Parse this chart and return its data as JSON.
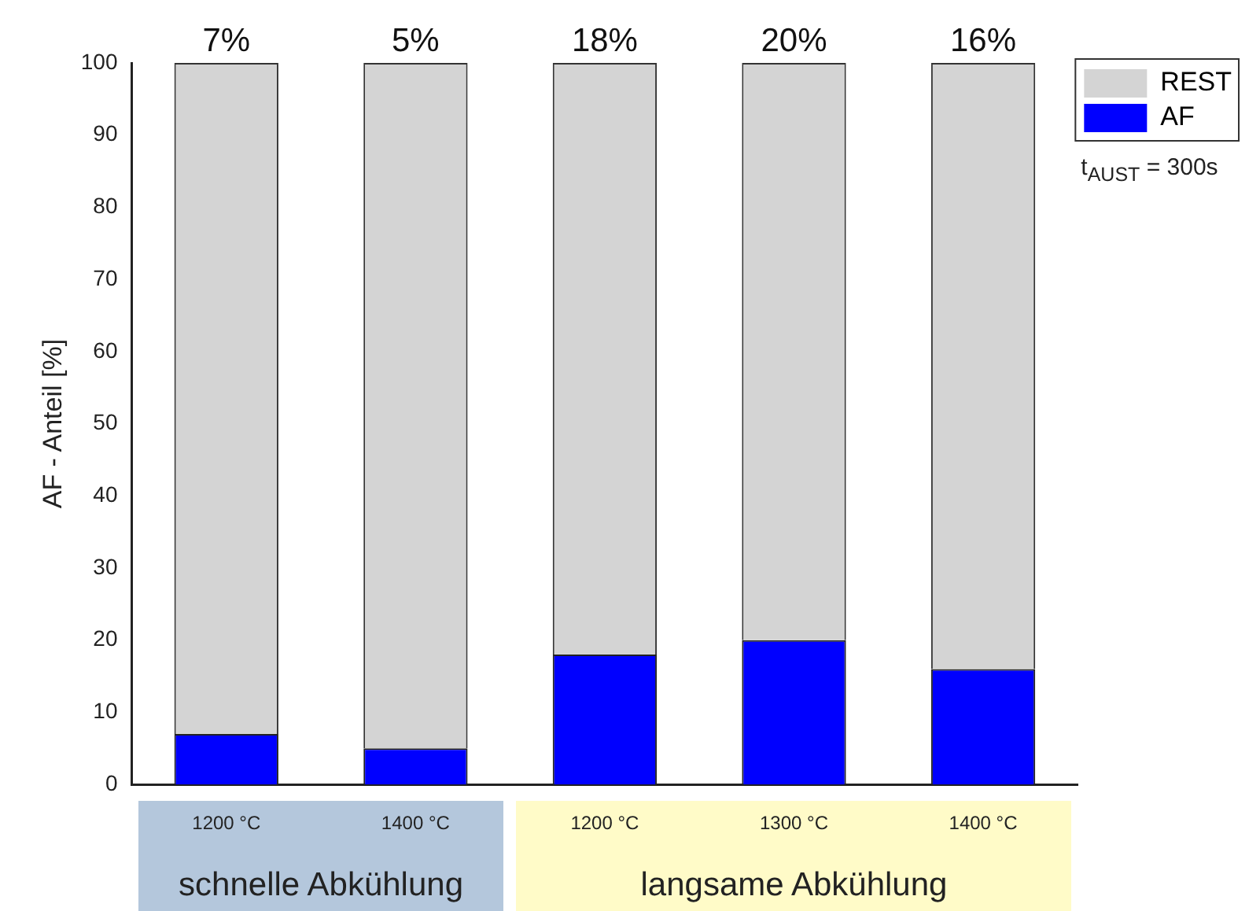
{
  "chart_data": {
    "type": "bar",
    "stacked": true,
    "ylabel": "AF - Anteil [%]",
    "categories": [
      "1200 °C",
      "1400 °C",
      "1200 °C",
      "1300 °C",
      "1400 °C"
    ],
    "series": [
      {
        "name": "AF",
        "color": "#0000ff",
        "values": [
          7,
          5,
          18,
          20,
          16
        ]
      },
      {
        "name": "REST",
        "color": "#d4d4d4",
        "values": [
          93,
          95,
          82,
          80,
          84
        ]
      }
    ],
    "ylim": [
      0,
      100
    ],
    "yticks": [
      0,
      10,
      20,
      30,
      40,
      50,
      60,
      70,
      80,
      90,
      100
    ],
    "grid": false,
    "legend": "top right",
    "annotations": [
      "t$_{AUST}$ = 300s",
      "schnelle Abkühlung",
      "langsame Abkühlung",
      "7%",
      "5%",
      "18%",
      "20%",
      "16%"
    ]
  }
}
